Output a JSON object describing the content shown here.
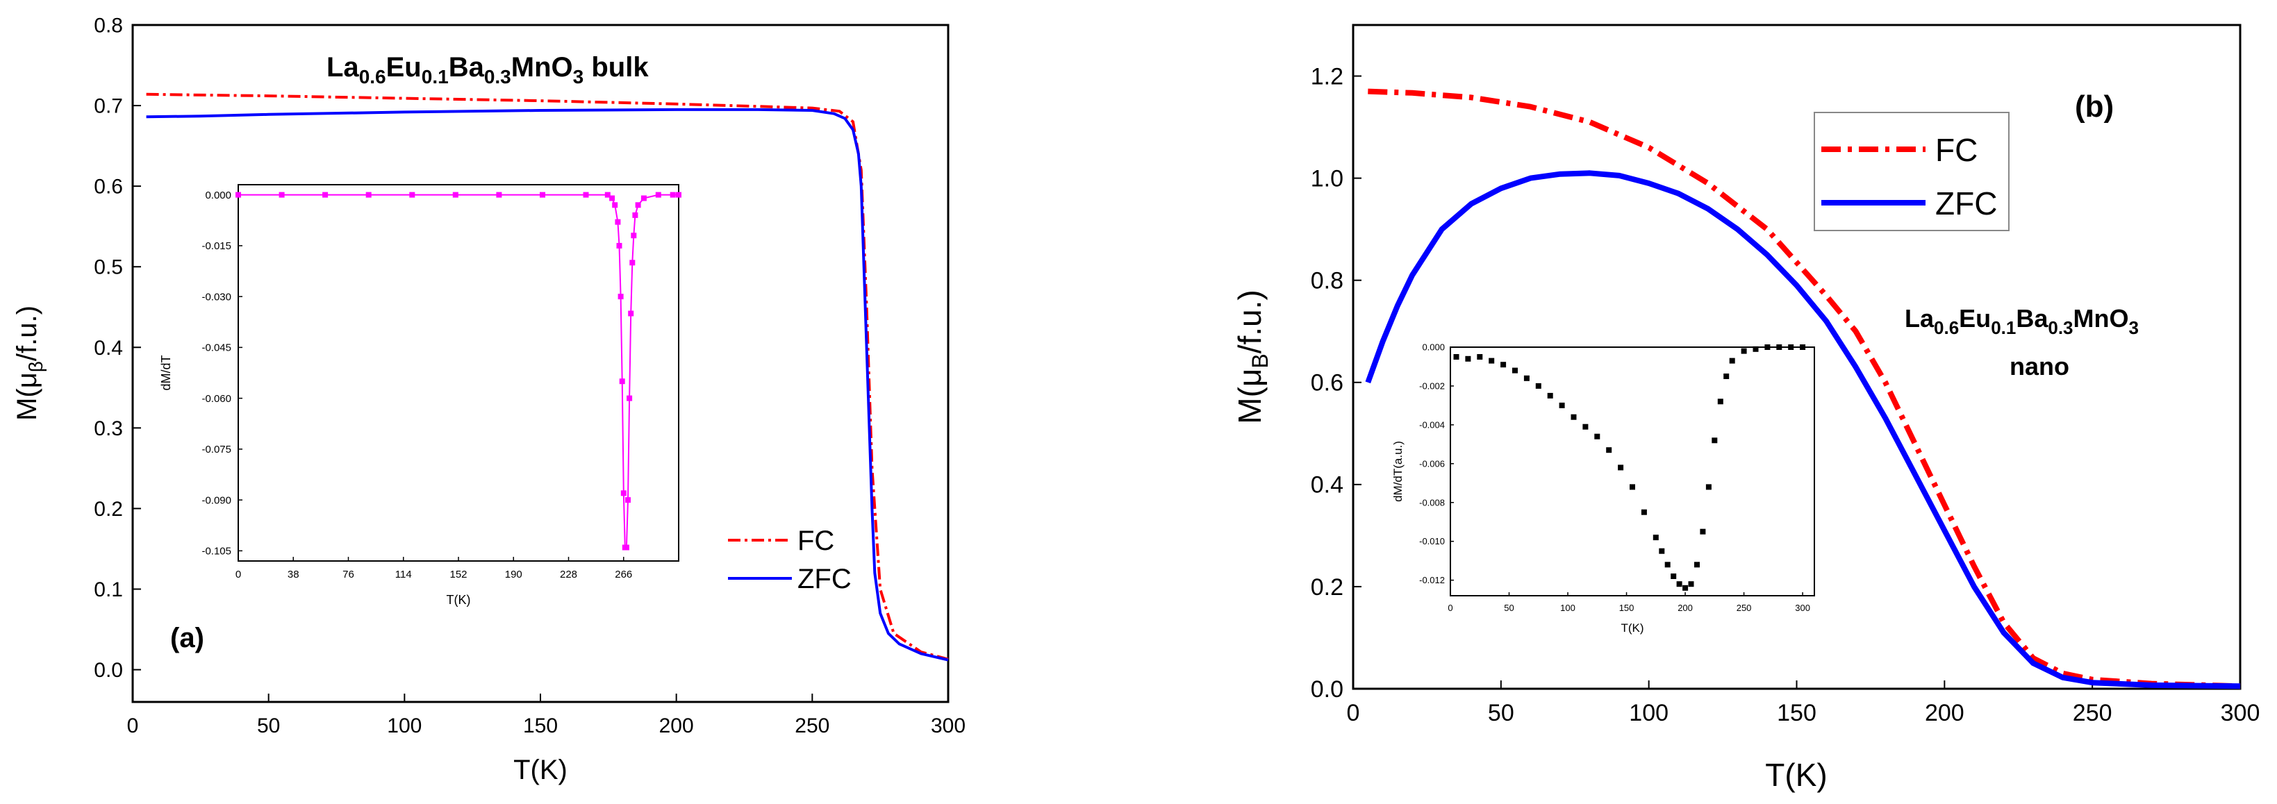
{
  "colors": {
    "fc": "#ff0000",
    "zfc": "#0000ff",
    "inset_a": "#ff00ff",
    "inset_b": "#000000",
    "axis": "#000000"
  },
  "chart_data": [
    {
      "id": "a",
      "type": "line",
      "panel_label": "(a)",
      "title_parts": [
        "La",
        "0.6",
        "Eu",
        "0.1",
        "Ba",
        "0.3",
        "MnO",
        "3",
        " bulk"
      ],
      "xlabel": "T(K)",
      "ylabel_parts": [
        "M(μ",
        "β",
        "/f.u.)"
      ],
      "xlim": [
        0,
        300
      ],
      "ylim": [
        -0.04,
        0.8
      ],
      "xticks": [
        0,
        50,
        100,
        150,
        200,
        250,
        300
      ],
      "xtick_labels": [
        "0",
        "50",
        "100",
        "150",
        "200",
        "250",
        "300"
      ],
      "yticks": [
        0.0,
        0.1,
        0.2,
        0.3,
        0.4,
        0.5,
        0.6,
        0.7,
        0.8
      ],
      "ytick_labels": [
        "0.0",
        "0.1",
        "0.2",
        "0.3",
        "0.4",
        "0.5",
        "0.6",
        "0.7",
        "0.8"
      ],
      "legend": {
        "placement": "bottom-right",
        "entries": [
          "FC",
          "ZFC"
        ]
      },
      "series": [
        {
          "name": "FC",
          "style": "dash-dot",
          "x": [
            5,
            50,
            100,
            150,
            200,
            230,
            250,
            260,
            265,
            268,
            270,
            272,
            275,
            280,
            290,
            300
          ],
          "values": [
            0.714,
            0.712,
            0.709,
            0.706,
            0.702,
            0.699,
            0.697,
            0.693,
            0.68,
            0.62,
            0.45,
            0.25,
            0.1,
            0.045,
            0.022,
            0.013
          ]
        },
        {
          "name": "ZFC",
          "style": "solid",
          "x": [
            5,
            25,
            50,
            100,
            150,
            200,
            230,
            250,
            258,
            262,
            265,
            267,
            268,
            269,
            270,
            271,
            272,
            273,
            275,
            278,
            282,
            290,
            300
          ],
          "values": [
            0.686,
            0.687,
            0.689,
            0.692,
            0.694,
            0.695,
            0.695,
            0.694,
            0.69,
            0.684,
            0.67,
            0.64,
            0.6,
            0.5,
            0.4,
            0.3,
            0.2,
            0.12,
            0.07,
            0.045,
            0.032,
            0.02,
            0.012
          ]
        }
      ],
      "inset": {
        "xlabel": "T(K)",
        "ylabel": "dM/dT",
        "xlim": [
          0,
          304
        ],
        "ylim": [
          -0.108,
          0.003
        ],
        "xticks": [
          0,
          38,
          76,
          114,
          152,
          190,
          228,
          266
        ],
        "xtick_labels": [
          "0",
          "38",
          "76",
          "114",
          "152",
          "190",
          "228",
          "266"
        ],
        "yticks": [
          0.0,
          -0.015,
          -0.03,
          -0.045,
          -0.06,
          -0.075,
          -0.09,
          -0.105
        ],
        "ytick_labels": [
          "0.000",
          "-0.015",
          "-0.030",
          "-0.045",
          "-0.060",
          "-0.075",
          "-0.090",
          "-0.105"
        ],
        "series": [
          {
            "name": "dM/dT",
            "x": [
              0,
              30,
              60,
              90,
              120,
              150,
              180,
              210,
              240,
              255,
              258,
              260,
              262,
              263,
              264,
              265,
              266,
              267,
              268,
              269,
              270,
              271,
              272,
              273,
              274,
              276,
              280,
              290,
              300,
              304
            ],
            "values": [
              0,
              0,
              0,
              0,
              0,
              0,
              0,
              0,
              0,
              0,
              -0.001,
              -0.003,
              -0.008,
              -0.015,
              -0.03,
              -0.055,
              -0.088,
              -0.104,
              -0.104,
              -0.09,
              -0.06,
              -0.035,
              -0.02,
              -0.012,
              -0.006,
              -0.003,
              -0.001,
              0,
              0,
              0
            ]
          }
        ]
      }
    },
    {
      "id": "b",
      "type": "line",
      "panel_label": "(b)",
      "title_parts": [
        "La",
        "0.6",
        "Eu",
        "0.1",
        "Ba",
        "0.3",
        "MnO",
        "3"
      ],
      "subtitle": "nano",
      "xlabel": "T(K)",
      "ylabel_parts": [
        "M(μ",
        "B",
        "/f.u.)"
      ],
      "xlim": [
        0,
        300
      ],
      "ylim": [
        0,
        1.3
      ],
      "xticks": [
        0,
        50,
        100,
        150,
        200,
        250,
        300
      ],
      "xtick_labels": [
        "0",
        "50",
        "100",
        "150",
        "200",
        "250",
        "300"
      ],
      "yticks": [
        0.0,
        0.2,
        0.4,
        0.6,
        0.8,
        1.0,
        1.2
      ],
      "ytick_labels": [
        "0.0",
        "0.2",
        "0.4",
        "0.6",
        "0.8",
        "1.0",
        "1.2"
      ],
      "legend": {
        "placement": "top-center",
        "entries": [
          "FC",
          "ZFC"
        ]
      },
      "series": [
        {
          "name": "FC",
          "style": "dash-dot",
          "x": [
            5,
            20,
            40,
            60,
            80,
            100,
            120,
            140,
            160,
            170,
            180,
            190,
            200,
            210,
            220,
            230,
            240,
            250,
            270,
            300
          ],
          "values": [
            1.17,
            1.167,
            1.158,
            1.14,
            1.11,
            1.06,
            0.99,
            0.9,
            0.77,
            0.7,
            0.6,
            0.48,
            0.36,
            0.24,
            0.13,
            0.06,
            0.03,
            0.018,
            0.01,
            0.005
          ]
        },
        {
          "name": "ZFC",
          "style": "solid",
          "x": [
            5,
            10,
            15,
            20,
            30,
            40,
            50,
            60,
            70,
            80,
            90,
            100,
            110,
            120,
            130,
            140,
            150,
            160,
            170,
            180,
            190,
            200,
            210,
            220,
            230,
            240,
            250,
            270,
            300
          ],
          "values": [
            0.6,
            0.68,
            0.75,
            0.81,
            0.9,
            0.95,
            0.98,
            1.0,
            1.008,
            1.01,
            1.005,
            0.99,
            0.97,
            0.94,
            0.9,
            0.85,
            0.79,
            0.72,
            0.63,
            0.53,
            0.42,
            0.31,
            0.2,
            0.11,
            0.05,
            0.022,
            0.012,
            0.007,
            0.005
          ]
        }
      ],
      "inset": {
        "xlabel": "T(K)",
        "ylabel": "dM/dT(a.u.)",
        "xlim": [
          0,
          310
        ],
        "ylim": [
          -0.0128,
          0
        ],
        "xticks": [
          0,
          50,
          100,
          150,
          200,
          250,
          300
        ],
        "xtick_labels": [
          "0",
          "50",
          "100",
          "150",
          "200",
          "250",
          "300"
        ],
        "yticks": [
          0.0,
          -0.002,
          -0.004,
          -0.006,
          -0.008,
          -0.01,
          -0.012
        ],
        "ytick_labels": [
          "0.000",
          "-0.002",
          "-0.004",
          "-0.006",
          "-0.008",
          "-0.010",
          "-0.012"
        ],
        "series": [
          {
            "name": "dM/dT",
            "x": [
              5,
              15,
              25,
              35,
              45,
              55,
              65,
              75,
              85,
              95,
              105,
              115,
              125,
              135,
              145,
              155,
              165,
              175,
              180,
              185,
              190,
              195,
              200,
              205,
              210,
              215,
              220,
              225,
              230,
              235,
              240,
              250,
              260,
              270,
              280,
              290,
              300
            ],
            "values": [
              -0.0005,
              -0.0006,
              -0.0005,
              -0.0007,
              -0.0009,
              -0.0012,
              -0.0016,
              -0.002,
              -0.0025,
              -0.003,
              -0.0036,
              -0.0041,
              -0.0046,
              -0.0053,
              -0.0062,
              -0.0072,
              -0.0085,
              -0.0098,
              -0.0105,
              -0.0112,
              -0.0118,
              -0.0122,
              -0.0124,
              -0.0122,
              -0.0112,
              -0.0095,
              -0.0072,
              -0.0048,
              -0.0028,
              -0.0015,
              -0.0007,
              -0.0002,
              -0.0001,
              0,
              0,
              0,
              0
            ]
          }
        ]
      }
    }
  ]
}
